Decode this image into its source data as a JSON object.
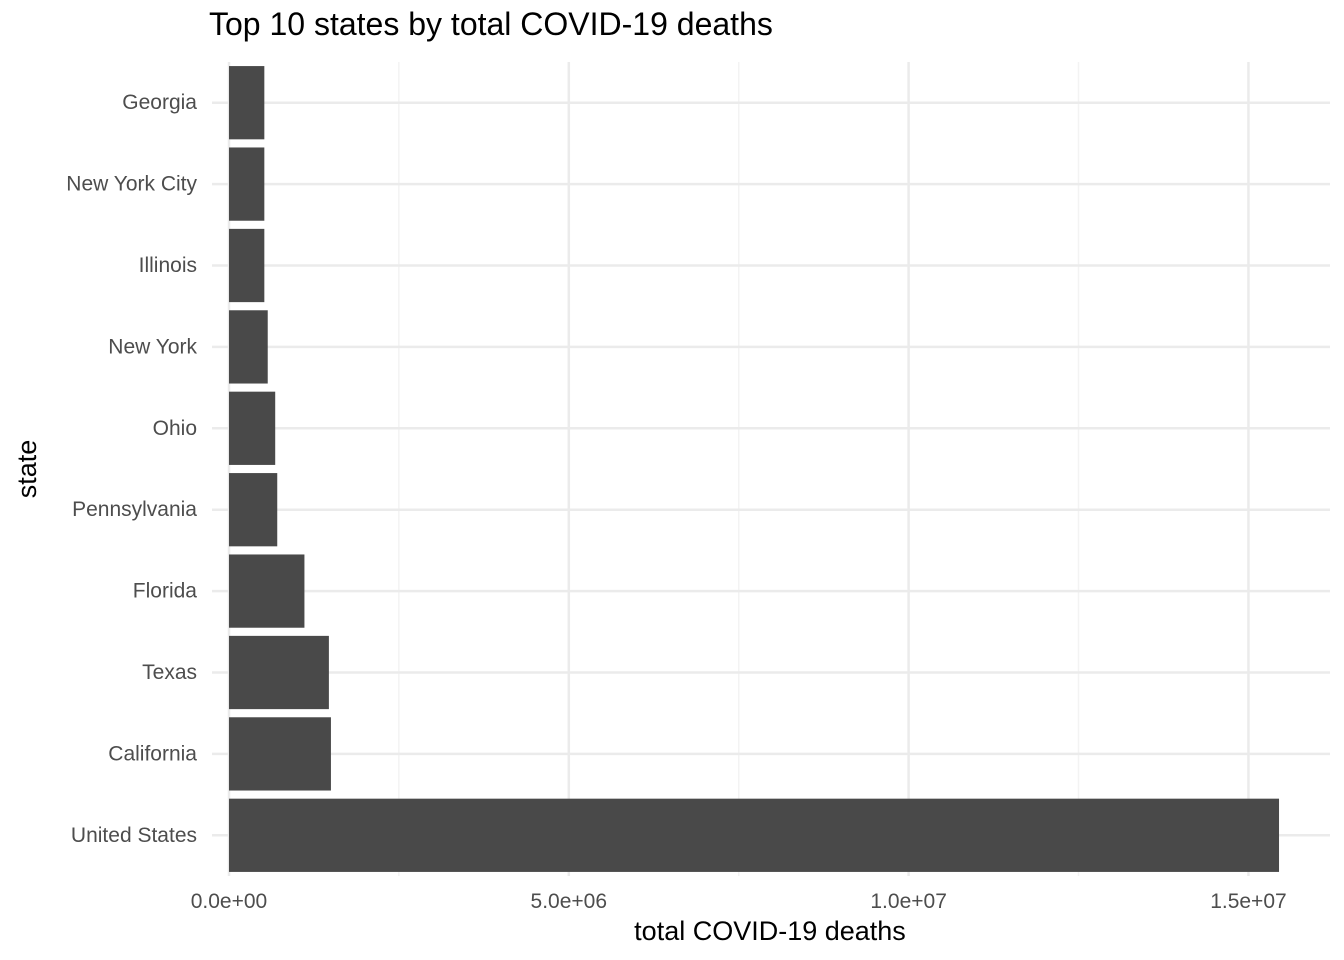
{
  "chart_data": {
    "type": "bar",
    "orientation": "horizontal",
    "title": "Top 10 states by total COVID-19 deaths",
    "xlabel": "total COVID-19 deaths",
    "ylabel": "state",
    "categories": [
      "Georgia",
      "New York City",
      "Illinois",
      "New York",
      "Ohio",
      "Pennsylvania",
      "Florida",
      "Texas",
      "California",
      "United States"
    ],
    "values": [
      520000,
      520000,
      520000,
      570000,
      680000,
      710000,
      1110000,
      1470000,
      1500000,
      15450000
    ],
    "xlim": [
      -250000,
      16200000
    ],
    "xticks": [
      0,
      5000000,
      10000000,
      15000000
    ],
    "xtick_labels": [
      "0.0e+00",
      "5.0e+06",
      "1.0e+07",
      "1.5e+07"
    ],
    "grid": true,
    "legend": "none",
    "colors": {
      "bar": "#494949",
      "grid_major": "#ebebeb",
      "grid_minor": "#f3f3f3",
      "text": "#4d4d4d",
      "title": "#000000"
    }
  }
}
